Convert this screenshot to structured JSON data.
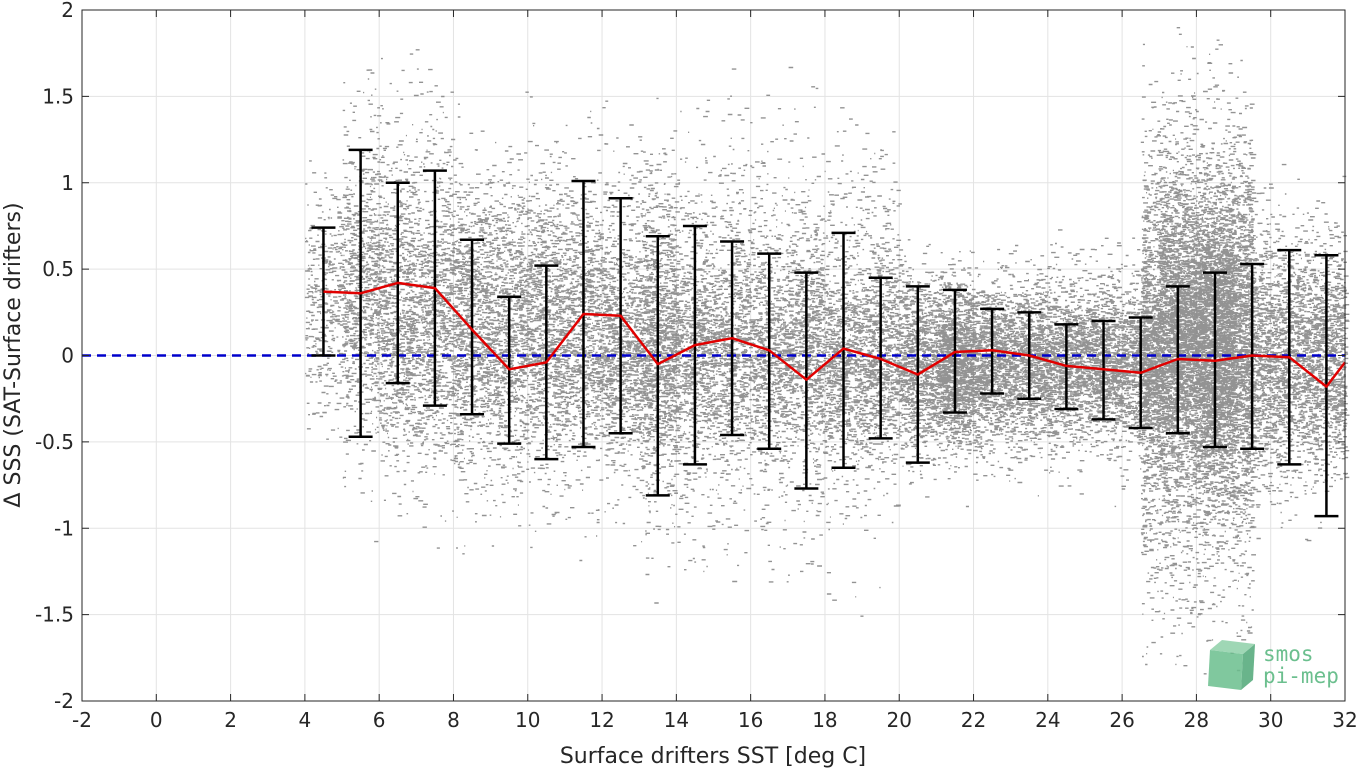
{
  "chart_data": {
    "type": "scatter",
    "title": "",
    "xlabel": "Surface drifters SST [deg C]",
    "ylabel": "Δ SSS (SAT-Surface drifters)",
    "xlim": [
      -2,
      32
    ],
    "ylim": [
      -2,
      2
    ],
    "grid": true,
    "x_ticks": [
      "-2",
      "0",
      "2",
      "4",
      "6",
      "8",
      "10",
      "12",
      "14",
      "16",
      "18",
      "20",
      "22",
      "24",
      "26",
      "28",
      "30",
      "32"
    ],
    "y_ticks": [
      "-2",
      "-1.5",
      "-1",
      "-0.5",
      "0",
      "0.5",
      "1",
      "1.5",
      "2"
    ],
    "zero_line": {
      "value": 0,
      "color": "#0000cc",
      "style": "dashed"
    },
    "scatter_color": "#808080",
    "mean_line_color": "#e00000",
    "errorbar_color": "#000000",
    "binned_stats": {
      "x": [
        4.5,
        5.5,
        6.5,
        7.5,
        8.5,
        9.5,
        10.5,
        11.5,
        12.5,
        13.5,
        14.5,
        15.5,
        16.5,
        17.5,
        18.5,
        19.5,
        20.5,
        21.5,
        22.5,
        23.5,
        24.5,
        25.5,
        26.5,
        27.5,
        28.5,
        29.5,
        30.5,
        31.5
      ],
      "mean": [
        0.37,
        0.36,
        0.42,
        0.39,
        0.15,
        -0.08,
        -0.04,
        0.24,
        0.23,
        -0.05,
        0.06,
        0.1,
        0.03,
        -0.14,
        0.04,
        -0.02,
        -0.11,
        0.02,
        0.03,
        0.0,
        -0.06,
        -0.08,
        -0.1,
        -0.02,
        -0.03,
        0.0,
        -0.01,
        -0.18
      ],
      "upper": [
        0.74,
        1.19,
        1.0,
        1.07,
        0.67,
        0.34,
        0.52,
        1.01,
        0.91,
        0.69,
        0.75,
        0.66,
        0.59,
        0.48,
        0.71,
        0.45,
        0.4,
        0.38,
        0.27,
        0.25,
        0.18,
        0.2,
        0.22,
        0.4,
        0.48,
        0.53,
        0.61,
        0.58
      ],
      "lower": [
        0.0,
        -0.47,
        -0.16,
        -0.29,
        -0.34,
        -0.51,
        -0.6,
        -0.53,
        -0.45,
        -0.81,
        -0.63,
        -0.46,
        -0.54,
        -0.77,
        -0.65,
        -0.48,
        -0.62,
        -0.33,
        -0.22,
        -0.25,
        -0.31,
        -0.37,
        -0.42,
        -0.45,
        -0.53,
        -0.54,
        -0.63,
        -0.93
      ]
    },
    "mean_line_end": {
      "x": 32,
      "y": -0.04
    },
    "scatter_density": [
      {
        "x": [
          4,
          6
        ],
        "y": [
          -0.6,
          1.3
        ],
        "density": 0.35
      },
      {
        "x": [
          5,
          8
        ],
        "y": [
          -1.2,
          2.0
        ],
        "density": 0.25
      },
      {
        "x": [
          6,
          12
        ],
        "y": [
          -0.9,
          1.2
        ],
        "density": 0.45
      },
      {
        "x": [
          8,
          14
        ],
        "y": [
          -1.3,
          1.6
        ],
        "density": 0.3
      },
      {
        "x": [
          12,
          18
        ],
        "y": [
          -0.8,
          0.8
        ],
        "density": 0.6
      },
      {
        "x": [
          13,
          20
        ],
        "y": [
          -1.6,
          1.8
        ],
        "density": 0.2
      },
      {
        "x": [
          18,
          22
        ],
        "y": [
          -0.8,
          0.7
        ],
        "density": 0.7
      },
      {
        "x": [
          21,
          27
        ],
        "y": [
          -0.6,
          0.5
        ],
        "density": 0.95
      },
      {
        "x": [
          20,
          32
        ],
        "y": [
          -0.9,
          0.8
        ],
        "density": 0.5
      },
      {
        "x": [
          26.5,
          29.5
        ],
        "y": [
          -2.0,
          2.0
        ],
        "density": 0.7
      },
      {
        "x": [
          27,
          29
        ],
        "y": [
          -0.9,
          1.3
        ],
        "density": 0.95
      },
      {
        "x": [
          28,
          32
        ],
        "y": [
          -1.2,
          1.2
        ],
        "density": 0.5
      }
    ]
  },
  "logo": {
    "line1": "smos",
    "line2": "pi-mep",
    "icon": "cube-logo-icon",
    "color": "#6bbf8e"
  }
}
